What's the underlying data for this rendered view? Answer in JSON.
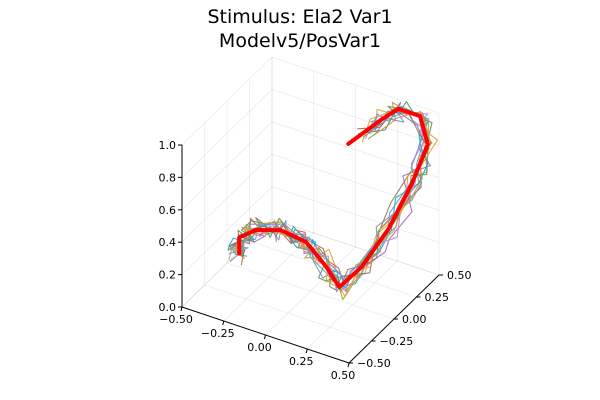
{
  "chart_data": {
    "type": "line3d",
    "title_lines": [
      "Stimulus: Ela2 Var1",
      "Modelv5/PosVar1"
    ],
    "xlabel": "",
    "ylabel": "",
    "zlabel": "",
    "xlim": [
      -0.5,
      0.5
    ],
    "ylim": [
      -0.5,
      0.5
    ],
    "zlim": [
      0.0,
      1.0
    ],
    "x_ticks": [
      "−0.50",
      "−0.25",
      "0.00",
      "0.25",
      "0.50"
    ],
    "y_ticks": [
      "−0.50",
      "−0.25",
      "0.00",
      "0.25",
      "0.50"
    ],
    "z_ticks": [
      "0.0",
      "0.2",
      "0.4",
      "0.6",
      "0.8",
      "1.0"
    ],
    "grid": true,
    "legend": "none",
    "target": {
      "name": "",
      "color": "#ff0000",
      "points": [
        [
          -0.4,
          -0.05,
          0.12
        ],
        [
          -0.4,
          -0.05,
          0.22
        ],
        [
          -0.3,
          -0.05,
          0.3
        ],
        [
          -0.15,
          -0.05,
          0.35
        ],
        [
          0.0,
          -0.05,
          0.33
        ],
        [
          0.12,
          -0.05,
          0.22
        ],
        [
          0.2,
          -0.05,
          0.12
        ],
        [
          0.28,
          0.05,
          0.22
        ],
        [
          0.36,
          0.2,
          0.4
        ],
        [
          0.42,
          0.35,
          0.62
        ],
        [
          0.46,
          0.45,
          0.82
        ],
        [
          0.43,
          0.42,
          1.0
        ],
        [
          0.3,
          0.42,
          1.0
        ],
        [
          0.2,
          0.42,
          0.9
        ],
        [
          0.0,
          0.42,
          0.68
        ]
      ]
    },
    "trial_colors": [
      "#5a9bd5",
      "#e69c2c",
      "#4f9a46",
      "#9d66c7",
      "#c25b57",
      "#1aa8b8",
      "#d882c2",
      "#8a7a52",
      "#7b8fa8",
      "#b1a13a"
    ],
    "trial_count": 12,
    "trial_jitter": 0.05
  }
}
